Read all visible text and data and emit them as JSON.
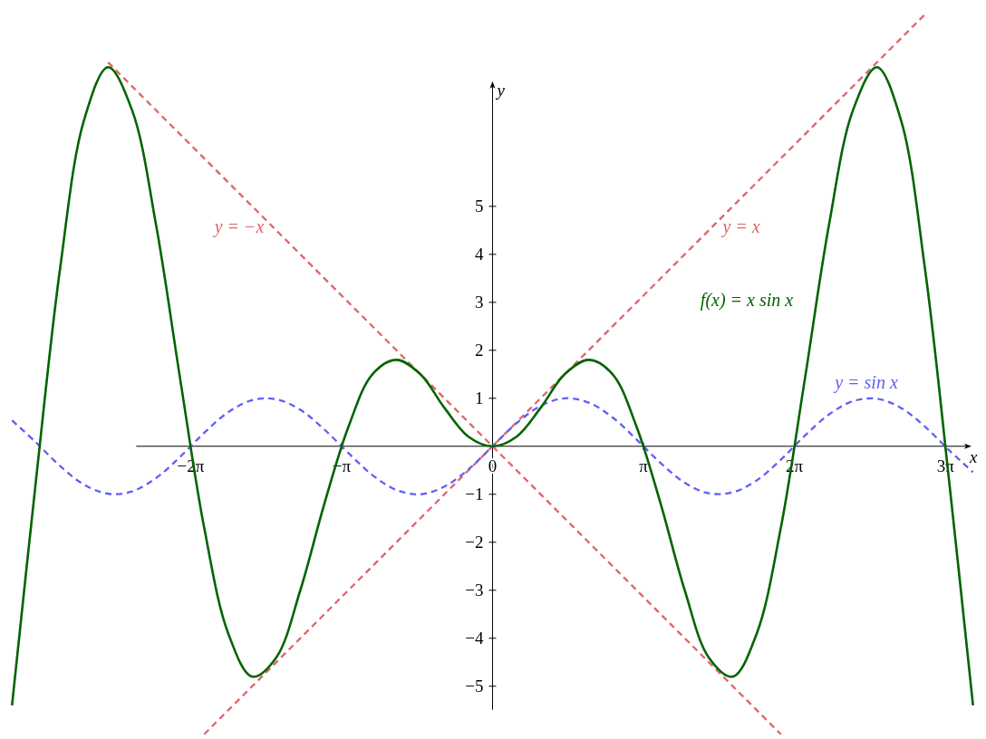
{
  "chart_data": {
    "type": "line",
    "xlabel": "x",
    "ylabel": "y",
    "xlim": [
      -10.25,
      10.27
    ],
    "ylim": [
      -6.1,
      9.3
    ],
    "xticks": [
      {
        "value": -6.283,
        "label": "−2π"
      },
      {
        "value": -3.1416,
        "label": "−π"
      },
      {
        "value": 0,
        "label": "0"
      },
      {
        "value": 3.1416,
        "label": "π"
      },
      {
        "value": 6.283,
        "label": "2π"
      },
      {
        "value": 9.425,
        "label": "3π"
      }
    ],
    "yticks": [
      -5,
      -4,
      -3,
      -2,
      -1,
      1,
      2,
      3,
      4,
      5
    ],
    "grid": false,
    "marker": "none",
    "series": [
      {
        "color": "#e06469",
        "line_style": "dashed",
        "x": [
          -6,
          9
        ],
        "values": [
          -6,
          9
        ]
      },
      {
        "color": "#e06469",
        "line_style": "dashed",
        "x": [
          -8,
          6
        ],
        "values": [
          8,
          -6
        ]
      },
      {
        "color": "#5f5ff5",
        "line_style": "dashed",
        "x": [
          -10,
          -9.5,
          -9,
          -8.5,
          -8,
          -7.5,
          -7,
          -6.5,
          -6,
          -5.5,
          -5,
          -4.5,
          -4,
          -3.5,
          -3,
          -2.5,
          -2,
          -1.5,
          -1,
          -0.5,
          0,
          0.5,
          1,
          1.5,
          2,
          2.5,
          3,
          3.5,
          4,
          4.5,
          5,
          5.5,
          6,
          6.5,
          7,
          7.5,
          8,
          8.5,
          9,
          9.5,
          10
        ],
        "values": [
          0.54,
          0.08,
          -0.41,
          -0.8,
          -0.99,
          -0.94,
          -0.66,
          -0.22,
          0.28,
          0.71,
          0.96,
          0.98,
          0.76,
          0.35,
          -0.14,
          -0.6,
          -0.91,
          -1,
          -0.84,
          -0.48,
          0,
          0.48,
          0.84,
          1,
          0.91,
          0.6,
          0.14,
          -0.35,
          -0.76,
          -0.98,
          -0.96,
          -0.71,
          -0.28,
          0.22,
          0.66,
          0.94,
          0.99,
          0.8,
          0.41,
          -0.08,
          -0.54
        ]
      },
      {
        "color": "#006400",
        "line_style": "solid",
        "x": [
          -10,
          -9.5,
          -9,
          -8.5,
          -8,
          -7.5,
          -7,
          -6.5,
          -6,
          -5.5,
          -5,
          -4.5,
          -4,
          -3.5,
          -3,
          -2.5,
          -2,
          -1.5,
          -1,
          -0.5,
          0,
          0.5,
          1,
          1.5,
          2,
          2.5,
          3,
          3.5,
          4,
          4.5,
          5,
          5.5,
          6,
          6.5,
          7,
          7.5,
          8,
          8.5,
          9,
          9.5,
          10
        ],
        "values": [
          -5.4,
          -0.7,
          3.7,
          6.8,
          7.9,
          7.0,
          4.6,
          1.4,
          -1.7,
          -3.9,
          -4.8,
          -4.4,
          -3.0,
          -1.2,
          0.4,
          1.5,
          1.8,
          1.5,
          0.8,
          0.2,
          0,
          0.2,
          0.8,
          1.5,
          1.8,
          1.5,
          0.4,
          -1.2,
          -3.0,
          -4.4,
          -4.8,
          -3.9,
          -1.7,
          1.4,
          4.6,
          7.0,
          7.9,
          6.8,
          3.7,
          -0.7,
          -5.4
        ]
      }
    ],
    "annotations": [
      "y = −x",
      "y = x",
      "f(x) = x sin x",
      "y = sin x"
    ]
  }
}
